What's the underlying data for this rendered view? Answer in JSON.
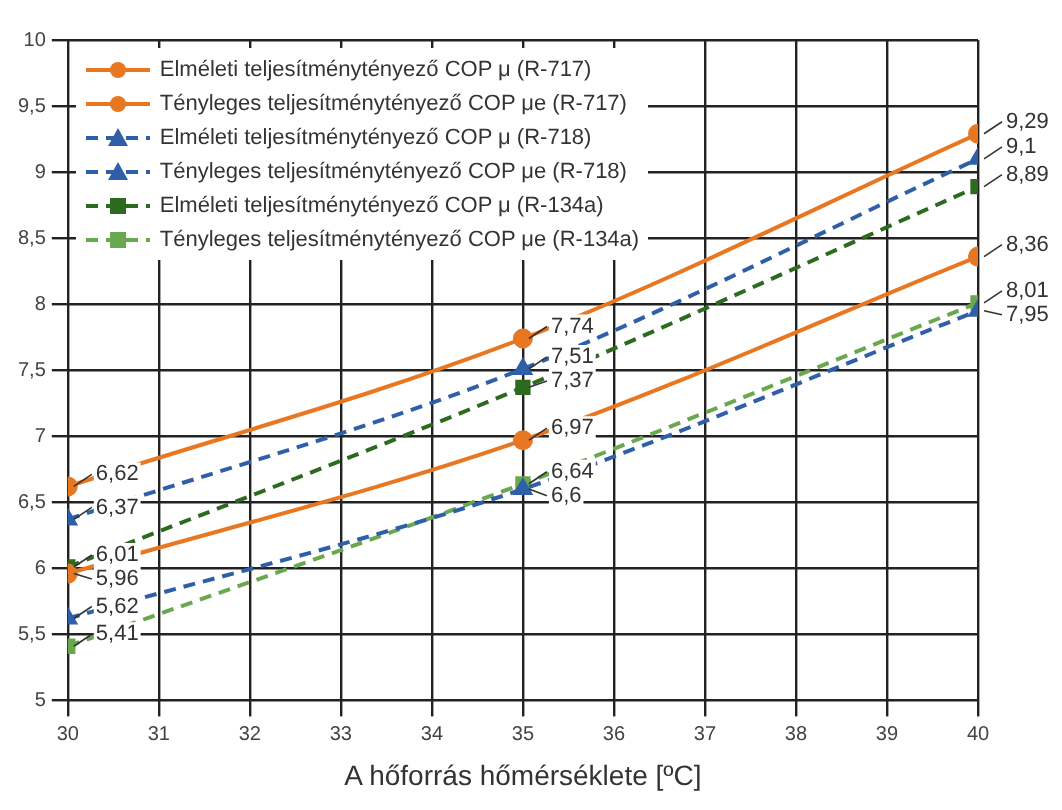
{
  "chart_data": {
    "type": "line",
    "xlabel": "A hőforrás hőmérséklete [ºC]",
    "x": [
      30,
      35,
      40
    ],
    "xlim": [
      30,
      40
    ],
    "xticks": [
      30,
      31,
      32,
      33,
      34,
      35,
      36,
      37,
      38,
      39,
      40
    ],
    "ylim": [
      5,
      10
    ],
    "yticks": [
      5,
      {
        "value": 5.5,
        "label": "5,5"
      },
      6,
      {
        "value": 6.5,
        "label": "6,5"
      },
      7,
      {
        "value": 7.5,
        "label": "7,5"
      },
      8,
      {
        "value": 8.5,
        "label": "8,5"
      },
      9,
      {
        "value": 9.5,
        "label": "9,5"
      },
      10
    ],
    "grid": true,
    "legend": "top left",
    "series": [
      {
        "name": "Elméleti teljesítménytényező COP μ (R-717)",
        "color": "#e87722",
        "marker": "circle",
        "line_style": "solid",
        "values": [
          6.62,
          7.74,
          9.29
        ],
        "value_labels": [
          "6,62",
          "7,74",
          "9,29"
        ]
      },
      {
        "name": "Tényleges teljesítménytényező COP μe (R-717)",
        "color": "#e87722",
        "marker": "circle",
        "line_style": "solid",
        "values": [
          5.96,
          6.97,
          8.36
        ],
        "value_labels": [
          "5,96",
          "6,97",
          "8,36"
        ]
      },
      {
        "name": "Elméleti teljesítménytényező COP μ (R-718)",
        "color": "#2e5fa8",
        "marker": "triangle",
        "line_style": "dashed",
        "values": [
          6.37,
          7.51,
          9.1
        ],
        "value_labels": [
          "6,37",
          "7,51",
          "9,1"
        ]
      },
      {
        "name": "Tényleges teljesítménytényező COP μe (R-718)",
        "color": "#2e5fa8",
        "marker": "triangle",
        "line_style": "dashed",
        "values": [
          5.62,
          6.6,
          7.95
        ],
        "value_labels": [
          "5,62",
          "6,6",
          "7,95"
        ]
      },
      {
        "name": "Elméleti teljesítménytényező COP μ (R-134a)",
        "color": "#2d6a1f",
        "marker": "square",
        "line_style": "dashed",
        "values": [
          6.01,
          7.37,
          8.89
        ],
        "value_labels": [
          "6,01",
          "7,37",
          "8,89"
        ]
      },
      {
        "name": "Tényleges teljesítménytényező COP μe (R-134a)",
        "color": "#6aa84f",
        "marker": "square",
        "line_style": "dashed",
        "values": [
          5.41,
          6.64,
          8.01
        ],
        "value_labels": [
          "5,41",
          "6,64",
          "8,01"
        ]
      }
    ]
  }
}
